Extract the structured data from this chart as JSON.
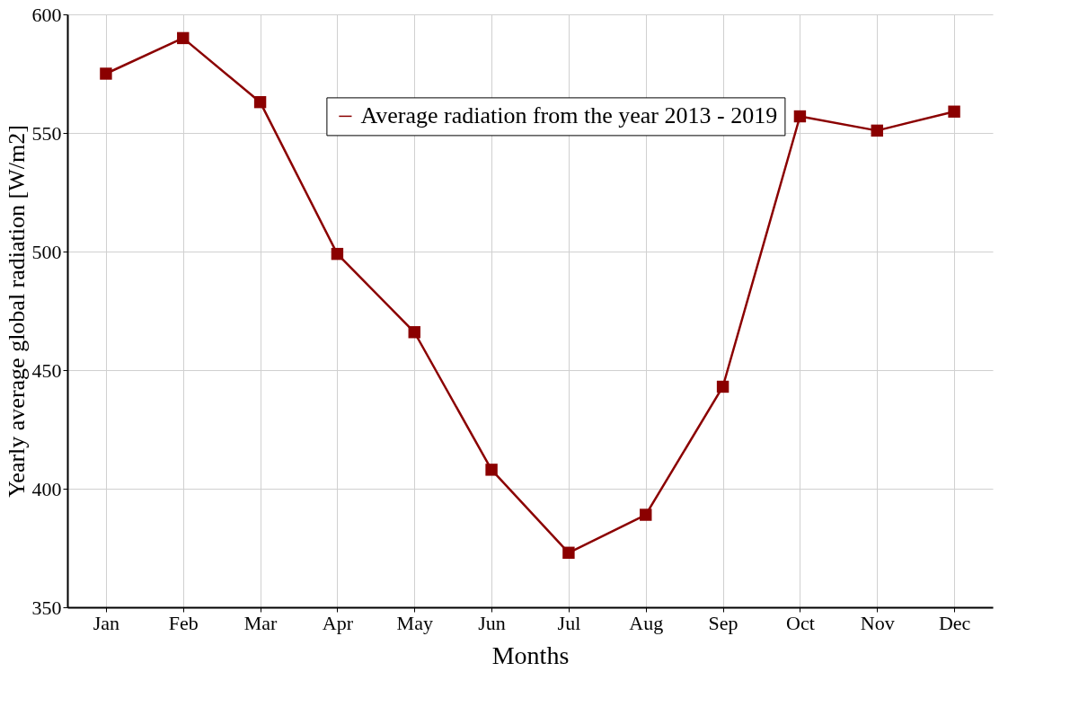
{
  "chart_data": {
    "type": "line",
    "xlabel": "Months",
    "ylabel": "Yearly average global radiation [W/m2]",
    "categories": [
      "Jan",
      "Feb",
      "Mar",
      "Apr",
      "May",
      "Jun",
      "Jul",
      "Aug",
      "Sep",
      "Oct",
      "Nov",
      "Dec"
    ],
    "series": [
      {
        "name": "Average radiation from the year 2013 - 2019",
        "color": "#8b0000",
        "values": [
          575,
          590,
          563,
          499,
          466,
          408,
          373,
          389,
          443,
          557,
          551,
          559
        ]
      }
    ],
    "ylim": [
      350,
      600
    ],
    "yticks": [
      350,
      400,
      450,
      500,
      550,
      600
    ],
    "grid": true,
    "legend": "top",
    "marker": "square",
    "line_style": "solid"
  }
}
